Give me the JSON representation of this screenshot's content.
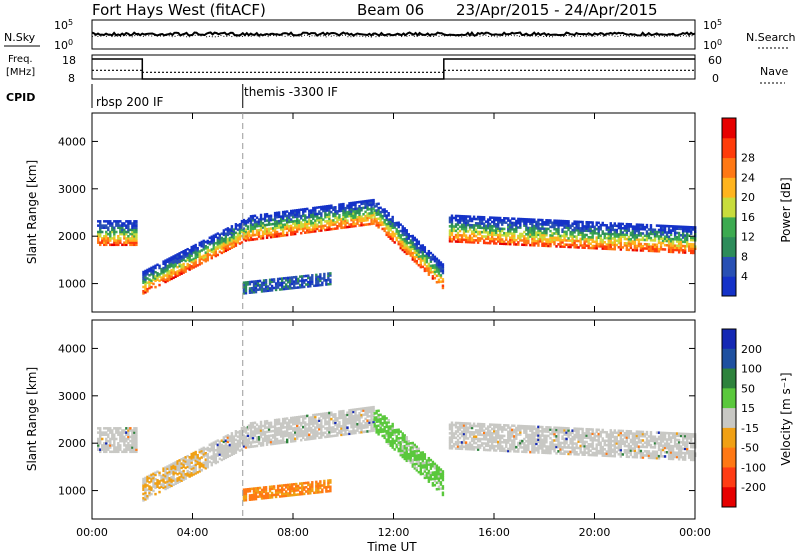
{
  "header": {
    "station": "Fort Hays West (fitACF)",
    "beam": "Beam 06",
    "date_range": "23/Apr/2015 - 24/Apr/2015"
  },
  "left_labels": {
    "nsky": "N.Sky",
    "freq_line1": "Freq.",
    "freq_line2": "[MHz]",
    "cpid": "CPID"
  },
  "right_labels": {
    "nsearch": "N.Search",
    "nave": "Nave"
  },
  "noise_axis": {
    "top_base": "10",
    "top_exp": "5",
    "bottom_base": "10",
    "bottom_exp": "0"
  },
  "freq_axis": {
    "top": "18",
    "bottom": "8"
  },
  "nave_axis": {
    "top": "60",
    "bottom": "0"
  },
  "cpid": {
    "mode1": "rbsp 200 IF",
    "mode2": "themis -3300 IF",
    "switch_time": "06:00"
  },
  "power_panel": {
    "ylabel": "Slant Range [km]",
    "yticks": [
      "1000",
      "2000",
      "3000",
      "4000"
    ],
    "colorbar": {
      "label": "Power [dB]",
      "ticks": [
        "4",
        "8",
        "12",
        "16",
        "20",
        "24",
        "28"
      ],
      "colors": [
        "#1432c8",
        "#2850b4",
        "#2d8c5a",
        "#3caa50",
        "#c8dc3c",
        "#ffb41e",
        "#ff7814",
        "#ff3c0a",
        "#e60000"
      ]
    }
  },
  "velocity_panel": {
    "ylabel": "Slant Range [km]",
    "yticks": [
      "1000",
      "2000",
      "3000",
      "4000"
    ],
    "colorbar": {
      "label": "Velocity [m s⁻¹]",
      "ticks": [
        "200",
        "100",
        "50",
        "15",
        "-15",
        "-50",
        "-100",
        "-200"
      ],
      "colors": [
        "#1428b4",
        "#1e50a0",
        "#2d823c",
        "#5ac83c",
        "#c8c8c4",
        "#f0a014",
        "#ff7814",
        "#ff3c14",
        "#e60000"
      ]
    }
  },
  "xaxis": {
    "label": "Time UT",
    "ticks": [
      "00:00",
      "04:00",
      "08:00",
      "12:00",
      "16:00",
      "20:00",
      "00:00"
    ]
  },
  "chart_data": {
    "type": "heatmap",
    "title": "Fort Hays West (fitACF)  Beam 06  23/Apr/2015 - 24/Apr/2015",
    "xlabel": "Time UT",
    "ylabel": "Slant Range [km]",
    "xlim_hours": [
      0,
      24
    ],
    "ylim_km": [
      400,
      4600
    ],
    "frequency_mhz": [
      {
        "start": 0,
        "end": 2,
        "value": 18
      },
      {
        "start": 2,
        "end": 14,
        "value": 8
      },
      {
        "start": 14,
        "end": 24,
        "value": 18
      }
    ],
    "nave": [
      {
        "start": 0,
        "end": 2,
        "value": 20
      },
      {
        "start": 2,
        "end": 14,
        "value": 14
      },
      {
        "start": 14,
        "end": 24,
        "value": 20
      }
    ],
    "sky_noise_level": "approximately constant near 10^5 scale top",
    "cpid_segments": [
      {
        "start": 0,
        "end": 6,
        "label": "rbsp 200 IF"
      },
      {
        "start": 6,
        "end": 24,
        "label": "themis -3300 IF"
      }
    ],
    "echo_bands": [
      {
        "name": "early band",
        "t": [
          0.2,
          1.8
        ],
        "center_km": [
          2050,
          2050
        ],
        "width_km": 500
      },
      {
        "name": "rising band",
        "t": [
          2.0,
          6.2
        ],
        "center_km": [
          1000,
          2150
        ],
        "width_km": 450
      },
      {
        "name": "plateau band",
        "t": [
          6.2,
          11.2
        ],
        "center_km": [
          2150,
          2500
        ],
        "width_km": 500
      },
      {
        "name": "descending band",
        "t": [
          11.2,
          14.0
        ],
        "center_km": [
          2500,
          1100
        ],
        "width_km": 500
      },
      {
        "name": "late band",
        "t": [
          14.2,
          24.0
        ],
        "center_km": [
          2150,
          1900
        ],
        "width_km": 550
      },
      {
        "name": "low patch",
        "t": [
          6.0,
          9.5
        ],
        "center_km": [
          900,
          1100
        ],
        "width_km": 250
      }
    ],
    "velocity_notes": [
      {
        "t": [
          11.2,
          14.0
        ],
        "value_range": "15 to 50",
        "description": "positive velocities in descending band"
      },
      {
        "t": [
          6.0,
          9.5
        ],
        "value_range": "-50 to -100",
        "description": "negative velocities in low patch"
      },
      {
        "t": [
          2.0,
          4.5
        ],
        "value_range": "-15 to -50",
        "description": "negative velocities in rising band"
      }
    ]
  }
}
